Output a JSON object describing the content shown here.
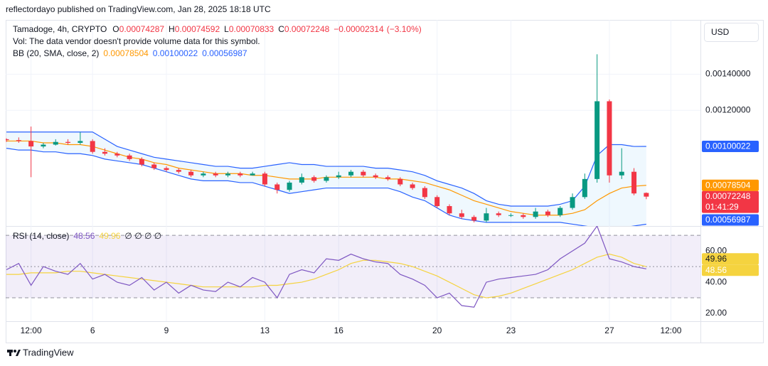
{
  "header": "reflectordayo published on TradingView.com, Jan 28, 2025 18:18 UTC",
  "currency": "USD",
  "footer": "TradingView",
  "chart_data": [
    {
      "type": "candlestick",
      "symbol": "Tamadoge, 4h, CRYPTO",
      "ohlc_keys": [
        "O",
        "H",
        "L",
        "C"
      ],
      "change": "−0.00002314",
      "change_pct": "(−3.10%)",
      "vol_note": "Vol: The data vendor doesn't provide volume data for this symbol.",
      "indicator": "BB (20, SMA, close, 2)",
      "countdown": "01:41:29",
      "up_color": "#089981",
      "down_color": "#f23645",
      "band_fill": "#2196f3",
      "x": [
        2.5,
        3,
        3.5,
        4,
        4.5,
        5,
        5.5,
        6,
        6.5,
        7,
        7.5,
        8,
        8.5,
        9,
        9.5,
        10,
        10.5,
        11,
        11.5,
        12,
        12.5,
        13,
        13.5,
        14,
        14.5,
        15,
        15.5,
        16,
        16.5,
        17,
        17.5,
        18,
        18.5,
        19,
        19.5,
        20,
        20.5,
        21,
        21.5,
        22,
        22.5,
        23,
        23.5,
        24,
        24.5,
        25,
        25.5,
        26,
        26.5,
        27,
        27.5,
        28,
        28.5
      ],
      "open": [
        0.00104,
        0.001035,
        0.00103,
        0.001,
        0.00101,
        0.001025,
        0.00102,
        0.00103,
        0.00097,
        0.00096,
        0.00095,
        0.00093,
        0.0009,
        0.00088,
        0.00087,
        0.00086,
        0.00084,
        0.00085,
        0.00084,
        0.00085,
        0.00084,
        0.00085,
        0.00079,
        0.00076,
        0.0008,
        0.00083,
        0.00081,
        0.00083,
        0.00084,
        0.00086,
        0.00084,
        0.00083,
        0.00082,
        0.00079,
        0.00077,
        0.00072,
        0.00067,
        0.00063,
        0.00061,
        0.00059,
        0.00063,
        0.00062,
        0.00062,
        0.00061,
        0.00064,
        0.00062,
        0.00066,
        0.00072,
        0.00082,
        0.00125,
        0.00084,
        0.00086,
        0.00074287
      ],
      "high": [
        0.001045,
        0.00105,
        0.00111,
        0.00102,
        0.00104,
        0.00104,
        0.00108,
        0.00104,
        0.00099,
        0.00097,
        0.00096,
        0.00094,
        0.00091,
        0.00089,
        0.00088,
        0.00087,
        0.00086,
        0.00086,
        0.00086,
        0.00086,
        0.00086,
        0.00086,
        0.0008,
        0.00081,
        0.00085,
        0.00084,
        0.00084,
        0.00086,
        0.00087,
        0.00087,
        0.00085,
        0.00084,
        0.00083,
        0.0008,
        0.00078,
        0.00073,
        0.00068,
        0.00065,
        0.00062,
        0.00066,
        0.00064,
        0.00063,
        0.00063,
        0.00066,
        0.00065,
        0.00067,
        0.00074,
        0.00085,
        0.00151,
        0.00126,
        0.00099,
        0.00088,
        0.00074592
      ],
      "low": [
        0.001025,
        0.00102,
        0.00083,
        0.00099,
        0.001005,
        0.00101,
        0.00101,
        0.00096,
        0.00095,
        0.00094,
        0.00092,
        0.00089,
        0.00087,
        0.00086,
        0.00085,
        0.00083,
        0.00083,
        0.00083,
        0.00083,
        0.00083,
        0.00084,
        0.00078,
        0.00074,
        0.00075,
        0.00079,
        0.0008,
        0.0008,
        0.00082,
        0.00083,
        0.00083,
        0.00082,
        0.00081,
        0.00078,
        0.00076,
        0.00071,
        0.00066,
        0.00062,
        0.0006,
        0.00058,
        0.00058,
        0.00061,
        0.00061,
        0.0006,
        0.0006,
        0.00061,
        0.00061,
        0.00065,
        0.00071,
        0.0008,
        0.0008,
        0.00082,
        0.00073,
        0.00070833
      ],
      "close": [
        0.001035,
        0.00103,
        0.001,
        0.00101,
        0.001025,
        0.00102,
        0.00103,
        0.00097,
        0.00096,
        0.00095,
        0.00093,
        0.0009,
        0.00088,
        0.00087,
        0.00086,
        0.00084,
        0.00085,
        0.00084,
        0.00085,
        0.00084,
        0.00085,
        0.00079,
        0.00076,
        0.0008,
        0.00083,
        0.00081,
        0.00083,
        0.00084,
        0.00086,
        0.00084,
        0.00083,
        0.00082,
        0.00079,
        0.00077,
        0.00072,
        0.00067,
        0.00063,
        0.00061,
        0.00059,
        0.00063,
        0.00062,
        0.00062,
        0.00061,
        0.00064,
        0.00062,
        0.00066,
        0.00072,
        0.00082,
        0.00125,
        0.00084,
        0.00086,
        0.00074,
        0.00072248
      ],
      "series": [
        {
          "color": "#ff9800",
          "values": [
            0.00103,
            0.00103,
            0.00103,
            0.00102,
            0.00102,
            0.00101,
            0.00101,
            0.001,
            0.00098,
            0.00096,
            0.00094,
            0.00093,
            0.00091,
            0.0009,
            0.00088,
            0.00087,
            0.00086,
            0.00085,
            0.00085,
            0.00085,
            0.00084,
            0.00084,
            0.00083,
            0.00082,
            0.00082,
            0.00082,
            0.00083,
            0.00083,
            0.00083,
            0.00083,
            0.00083,
            0.00082,
            0.00082,
            0.00081,
            0.0008,
            0.00078,
            0.00076,
            0.00073,
            0.0007,
            0.00068,
            0.00066,
            0.00064,
            0.00063,
            0.00062,
            0.00062,
            0.00062,
            0.00063,
            0.00065,
            0.0007,
            0.00074,
            0.00077,
            0.00078,
            0.00078504
          ]
        },
        {
          "color": "#2962ff",
          "values": [
            0.00108,
            0.00108,
            0.00108,
            0.00108,
            0.00108,
            0.00108,
            0.00108,
            0.00108,
            0.00104,
            0.001,
            0.00098,
            0.00096,
            0.00094,
            0.00093,
            0.00092,
            0.00091,
            0.0009,
            0.00089,
            0.00089,
            0.00088,
            0.00088,
            0.00089,
            0.0009,
            0.00091,
            0.0009,
            0.0009,
            0.00089,
            0.00089,
            0.00089,
            0.00089,
            0.00088,
            0.00088,
            0.00087,
            0.00086,
            0.00084,
            0.00081,
            0.00079,
            0.00077,
            0.00074,
            0.0007,
            0.00068,
            0.00067,
            0.00067,
            0.00067,
            0.00067,
            0.00068,
            0.0007,
            0.00078,
            0.00095,
            0.00101,
            0.00101,
            0.001,
            0.00100022
          ]
        },
        {
          "color": "#2962ff",
          "values": [
            0.00099,
            0.00098,
            0.00098,
            0.00097,
            0.00097,
            0.00096,
            0.00096,
            0.00095,
            0.00093,
            0.00092,
            0.00091,
            0.0009,
            0.00088,
            0.00086,
            0.00084,
            0.00082,
            0.00081,
            0.00081,
            0.00081,
            0.0008,
            0.0008,
            0.00078,
            0.00076,
            0.00074,
            0.00075,
            0.00076,
            0.00077,
            0.00077,
            0.00077,
            0.00077,
            0.00077,
            0.00077,
            0.00075,
            0.00072,
            0.0007,
            0.00066,
            0.00062,
            0.0006,
            0.00059,
            0.00058,
            0.00058,
            0.00058,
            0.00058,
            0.00058,
            0.00058,
            0.00058,
            0.00057,
            0.00056,
            0.00055,
            0.00055,
            0.00055,
            0.00056,
            0.00056987
          ]
        }
      ],
      "xlim": [
        2.47,
        30.7
      ],
      "xticks": [
        {
          "value": 3.5,
          "label": "12:00"
        },
        6,
        9,
        13,
        16,
        20,
        23,
        27,
        {
          "value": 29.5,
          "label": "12:00"
        }
      ],
      "ylim": [
        0.00056,
        0.0017
      ],
      "yticks": [
        {
          "value": 0.0012,
          "label": "0.00120000"
        },
        {
          "value": 0.0014,
          "label": "0.00140000"
        }
      ],
      "grid": true
    },
    {
      "type": "line",
      "indicator": "RSI (14, close)",
      "extra": "∅ ∅ ∅ ∅",
      "band_color": "#7e57c2",
      "bands": [
        30,
        50,
        70
      ],
      "series": [
        {
          "color": "#7e57c2",
          "values": [
            48,
            52,
            38,
            50,
            47,
            45,
            52,
            42,
            45,
            40,
            38,
            43,
            35,
            40,
            33,
            38,
            35,
            34,
            40,
            37,
            43,
            40,
            30,
            45,
            48,
            46,
            55,
            54,
            58,
            55,
            53,
            52,
            45,
            42,
            38,
            30,
            33,
            25,
            24,
            40,
            42,
            43,
            44,
            45,
            48,
            55,
            60,
            65,
            76,
            55,
            53,
            50,
            48.56
          ]
        },
        {
          "color": "#f5d33f",
          "values": [
            45,
            45,
            46,
            46,
            46,
            47,
            47,
            46,
            45,
            44,
            43,
            42,
            41,
            40,
            39,
            38,
            37,
            37,
            37,
            37,
            37,
            38,
            38,
            39,
            40,
            42,
            45,
            48,
            52,
            54,
            54,
            53,
            52,
            50,
            47,
            44,
            40,
            36,
            32,
            30,
            31,
            33,
            36,
            39,
            42,
            45,
            48,
            52,
            56,
            58,
            56,
            52,
            49.96
          ]
        }
      ],
      "ylim": [
        15,
        76
      ],
      "yticks": [
        {
          "value": 20,
          "label": "20.00"
        },
        {
          "value": 40,
          "label": "40.00"
        },
        {
          "value": 60,
          "label": "60.00"
        }
      ]
    }
  ]
}
